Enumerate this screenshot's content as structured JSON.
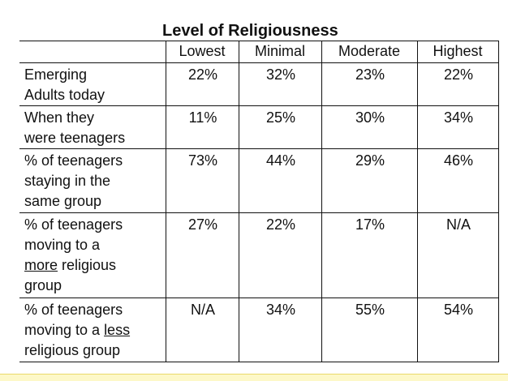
{
  "title": "Level of Religiousness",
  "columns": [
    "Lowest",
    "Minimal",
    "Moderate",
    "Highest"
  ],
  "rows": [
    {
      "label_parts": [
        {
          "text": "Emerging"
        },
        {
          "text": "Adults today"
        }
      ],
      "values": [
        "22%",
        "32%",
        "23%",
        "22%"
      ]
    },
    {
      "label_parts": [
        {
          "text": "When they"
        },
        {
          "text": "were teenagers"
        }
      ],
      "values": [
        "11%",
        "25%",
        "30%",
        "34%"
      ]
    },
    {
      "label_parts": [
        {
          "text": "% of teenagers"
        },
        {
          "text": "staying in the"
        },
        {
          "text": "same group"
        }
      ],
      "values": [
        "73%",
        "44%",
        "29%",
        "46%"
      ]
    },
    {
      "label_parts": [
        {
          "text": "% of teenagers"
        },
        {
          "text": "moving to a"
        },
        {
          "text": "more",
          "underline": true
        },
        {
          "text": " religious"
        },
        {
          "text": "group"
        }
      ],
      "values": [
        "27%",
        "22%",
        "17%",
        "N/A"
      ]
    },
    {
      "label_parts": [
        {
          "text": "% of teenagers"
        },
        {
          "text": "moving to a "
        },
        {
          "text": "less",
          "underline": true
        },
        {
          "text": "religious group"
        }
      ],
      "values": [
        "N/A",
        "34%",
        "55%",
        "54%"
      ]
    }
  ]
}
